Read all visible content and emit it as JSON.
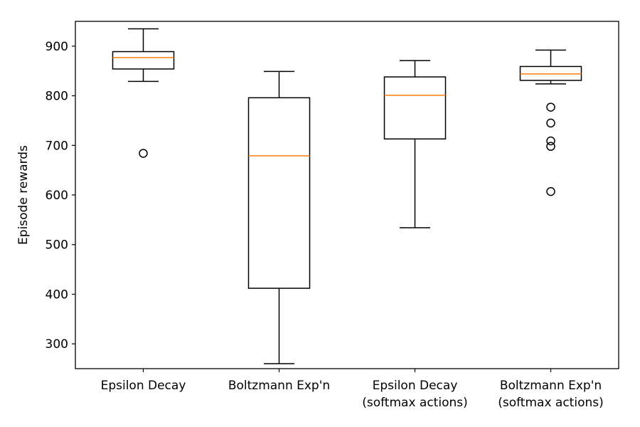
{
  "chart_data": {
    "type": "box",
    "title": "",
    "xlabel": "",
    "ylabel": "Episode rewards",
    "ylim": [
      250,
      950
    ],
    "yticks": [
      300,
      400,
      500,
      600,
      700,
      800,
      900
    ],
    "grid": false,
    "legend": "none",
    "categories": [
      "Epsilon Decay",
      "Boltzmann Exp'n",
      "Epsilon Decay\n(softmax actions)",
      "Boltzmann Exp'n\n(softmax actions)"
    ],
    "boxes": [
      {
        "whisker_low": 829,
        "q1": 854,
        "median": 877,
        "q3": 889,
        "whisker_high": 935,
        "outliers": [
          684
        ]
      },
      {
        "whisker_low": 260,
        "q1": 412,
        "median": 679,
        "q3": 796,
        "whisker_high": 849,
        "outliers": []
      },
      {
        "whisker_low": 534,
        "q1": 713,
        "median": 801,
        "q3": 838,
        "whisker_high": 871,
        "outliers": []
      },
      {
        "whisker_low": 824,
        "q1": 831,
        "median": 844,
        "q3": 859,
        "whisker_high": 892,
        "outliers": [
          777,
          745,
          709,
          698,
          607
        ]
      }
    ],
    "colors": {
      "box": "#000000",
      "median": "#ff7f0e",
      "outlier": "#000000"
    }
  }
}
